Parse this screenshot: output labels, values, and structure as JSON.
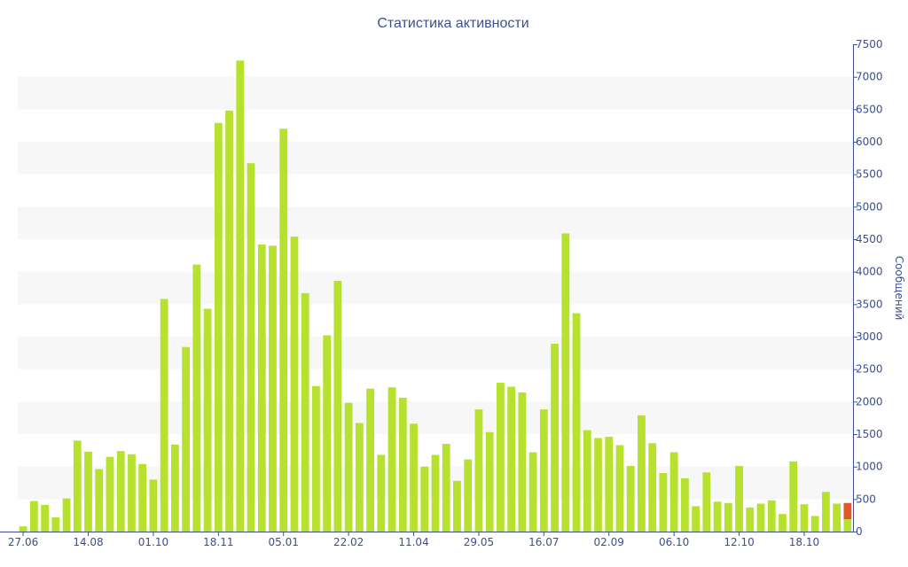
{
  "chart_data": {
    "type": "bar",
    "title": "Статистика активности",
    "ylabel": "Сообщений",
    "xlabel": "",
    "ylim": [
      0,
      7500
    ],
    "y_ticks": [
      0,
      500,
      1000,
      1500,
      2000,
      2500,
      3000,
      3500,
      4000,
      4500,
      5000,
      5500,
      6000,
      6500,
      7000,
      7500
    ],
    "y_axis_position": "right",
    "x_tick_labels": [
      {
        "index": 0,
        "label": "27.06"
      },
      {
        "index": 6,
        "label": "14.08"
      },
      {
        "index": 12,
        "label": "01.10"
      },
      {
        "index": 18,
        "label": "18.11"
      },
      {
        "index": 24,
        "label": "05.01"
      },
      {
        "index": 30,
        "label": "22.02"
      },
      {
        "index": 36,
        "label": "11.04"
      },
      {
        "index": 42,
        "label": "29.05"
      },
      {
        "index": 48,
        "label": "16.07"
      },
      {
        "index": 54,
        "label": "02.09"
      },
      {
        "index": 60,
        "label": "06.10"
      },
      {
        "index": 66,
        "label": "12.10"
      },
      {
        "index": 72,
        "label": "18.10"
      }
    ],
    "values": [
      80,
      470,
      410,
      220,
      510,
      1400,
      1230,
      960,
      1150,
      1240,
      1190,
      1040,
      800,
      3580,
      1340,
      2840,
      4110,
      3430,
      6290,
      6480,
      7250,
      5670,
      4420,
      4400,
      6200,
      4540,
      3670,
      2240,
      3020,
      3860,
      1980,
      1670,
      2200,
      1180,
      2220,
      2060,
      1660,
      1000,
      1180,
      1350,
      780,
      1110,
      1880,
      1530,
      2290,
      2230,
      2140,
      1220,
      1880,
      2890,
      4590,
      3360,
      1560,
      1440,
      1460,
      1330,
      1010,
      1790,
      1360,
      900,
      1220,
      820,
      390,
      910,
      460,
      440,
      1010,
      370,
      430,
      480,
      270,
      1080,
      420,
      240,
      610,
      430,
      440
    ],
    "highlight": {
      "index": 76,
      "base_value": 190,
      "highlight_value": 250,
      "color": "#e0582a"
    },
    "colors": {
      "bar": "#b7e12f",
      "text": "#3d4f8e",
      "axis": "#3d4f8e",
      "band": "#f7f7f7"
    },
    "grid": "alternating bands"
  }
}
